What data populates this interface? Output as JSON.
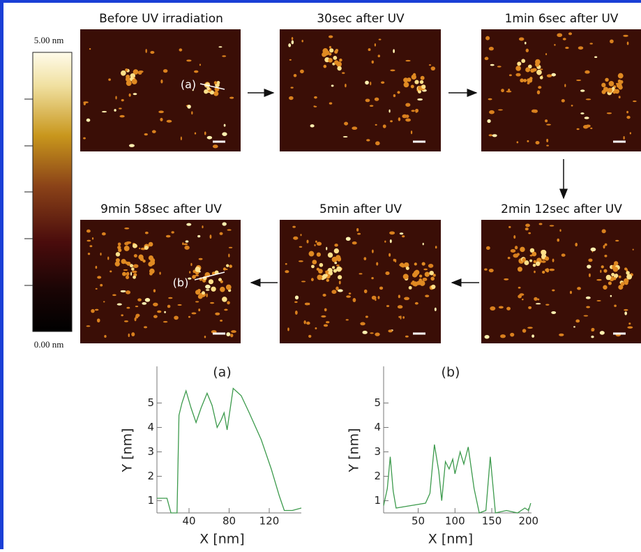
{
  "colorbar": {
    "max_label": "5.00 nm",
    "min_label": "0.00 nm"
  },
  "images": [
    {
      "title": "Before UV irradiation",
      "scan_label": "(a)"
    },
    {
      "title": "30sec after UV"
    },
    {
      "title": "1min 6sec after UV"
    },
    {
      "title": "2min 12sec after UV"
    },
    {
      "title": "5min after UV"
    },
    {
      "title": "9min 58sec after UV",
      "scan_label": "(b)"
    }
  ],
  "chart_data": [
    {
      "type": "line",
      "title": "(a)",
      "x_label": "X [nm]",
      "y_label": "Y [nm]",
      "color": "#3c9a4c",
      "x": [
        8,
        18,
        22,
        28,
        30,
        33,
        37,
        42,
        47,
        52,
        58,
        63,
        68,
        72,
        75,
        78,
        84,
        92,
        100,
        112,
        122,
        130,
        135,
        143,
        152
      ],
      "values": [
        1.1,
        1.1,
        0.5,
        0.5,
        4.5,
        5.0,
        5.5,
        4.8,
        4.2,
        4.8,
        5.4,
        4.9,
        4.0,
        4.3,
        4.6,
        3.9,
        5.6,
        5.3,
        4.6,
        3.5,
        2.3,
        1.2,
        0.6,
        0.6,
        0.7
      ],
      "xlim": [
        8,
        152
      ],
      "ylim": [
        0.5,
        6.5
      ],
      "xticks": [
        40,
        80,
        120
      ],
      "yticks": [
        1,
        2,
        3,
        4,
        5
      ]
    },
    {
      "type": "line",
      "title": "(b)",
      "x_label": "X [nm]",
      "y_label": "Y [nm]",
      "color": "#3c9a4c",
      "x": [
        3,
        8,
        12,
        16,
        20,
        40,
        60,
        66,
        72,
        78,
        82,
        87,
        92,
        97,
        100,
        107,
        112,
        118,
        126,
        133,
        142,
        148,
        155,
        170,
        185,
        195,
        200,
        203
      ],
      "values": [
        0.8,
        1.5,
        2.8,
        1.4,
        0.7,
        0.8,
        0.9,
        1.3,
        3.3,
        2.2,
        1.0,
        2.6,
        2.3,
        2.7,
        2.1,
        3.0,
        2.5,
        3.2,
        1.5,
        0.5,
        0.6,
        2.8,
        0.5,
        0.6,
        0.5,
        0.7,
        0.6,
        0.9
      ],
      "xlim": [
        3,
        204
      ],
      "ylim": [
        0.5,
        6.5
      ],
      "xticks": [
        50,
        100,
        150,
        200
      ],
      "yticks": [
        1,
        2,
        3,
        4,
        5
      ]
    }
  ]
}
